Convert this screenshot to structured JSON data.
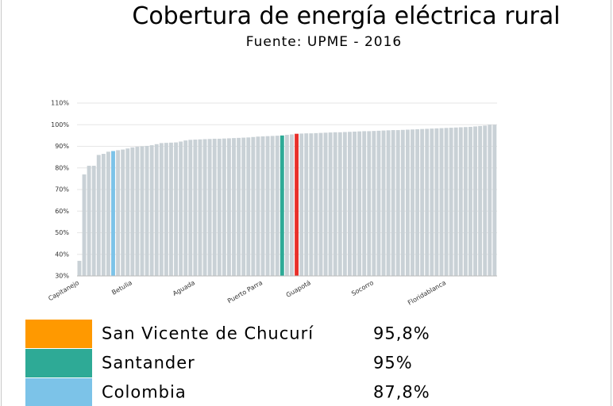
{
  "chart_data": {
    "type": "bar",
    "title": "Cobertura de energía eléctrica rural",
    "subtitle": "Fuente: UPME - 2016",
    "categories": [
      "Capitanejo",
      null,
      null,
      null,
      null,
      null,
      null,
      null,
      null,
      null,
      null,
      "Betulia",
      null,
      null,
      null,
      null,
      null,
      null,
      null,
      null,
      null,
      null,
      null,
      null,
      "Aguada",
      null,
      null,
      null,
      null,
      null,
      null,
      null,
      null,
      null,
      null,
      null,
      null,
      null,
      "Puerto Parra",
      null,
      null,
      null,
      null,
      null,
      null,
      null,
      null,
      null,
      "Guapotá",
      null,
      null,
      null,
      null,
      null,
      null,
      null,
      null,
      null,
      null,
      null,
      null,
      "Socorro",
      null,
      null,
      null,
      null,
      null,
      null,
      null,
      null,
      null,
      null,
      null,
      null,
      null,
      null,
      "Floridablanca",
      null,
      null,
      null,
      null,
      null,
      null,
      null,
      null,
      null,
      null
    ],
    "values": [
      37,
      77,
      81,
      81,
      86,
      86.5,
      87.5,
      87.8,
      88.2,
      88.5,
      89,
      89.5,
      89.8,
      90,
      90.2,
      90.5,
      91,
      91.5,
      91.6,
      91.7,
      91.8,
      92.2,
      92.7,
      93,
      93.1,
      93.2,
      93.3,
      93.4,
      93.5,
      93.5,
      93.6,
      93.7,
      93.8,
      93.9,
      94,
      94.1,
      94.3,
      94.5,
      94.6,
      94.7,
      94.8,
      94.9,
      95,
      95.3,
      95.5,
      95.8,
      95.9,
      96,
      96,
      96.1,
      96.2,
      96.3,
      96.4,
      96.5,
      96.5,
      96.6,
      96.7,
      96.8,
      96.9,
      97,
      97,
      97.1,
      97.2,
      97.3,
      97.4,
      97.5,
      97.5,
      97.6,
      97.7,
      97.8,
      97.9,
      98,
      98.1,
      98.2,
      98.3,
      98.4,
      98.5,
      98.6,
      98.7,
      98.8,
      98.9,
      99,
      99.2,
      99.4,
      99.6,
      100,
      100
    ],
    "colors": [
      "#c9d1d6",
      "#c9d1d6",
      "#c9d1d6",
      "#c9d1d6",
      "#c9d1d6",
      "#c9d1d6",
      "#c9d1d6",
      "#7cc3e8",
      "#c9d1d6",
      "#c9d1d6",
      "#c9d1d6",
      "#c9d1d6",
      "#c9d1d6",
      "#c9d1d6",
      "#c9d1d6",
      "#c9d1d6",
      "#c9d1d6",
      "#c9d1d6",
      "#c9d1d6",
      "#c9d1d6",
      "#c9d1d6",
      "#c9d1d6",
      "#c9d1d6",
      "#c9d1d6",
      "#c9d1d6",
      "#c9d1d6",
      "#c9d1d6",
      "#c9d1d6",
      "#c9d1d6",
      "#c9d1d6",
      "#c9d1d6",
      "#c9d1d6",
      "#c9d1d6",
      "#c9d1d6",
      "#c9d1d6",
      "#c9d1d6",
      "#c9d1d6",
      "#c9d1d6",
      "#c9d1d6",
      "#c9d1d6",
      "#c9d1d6",
      "#c9d1d6",
      "#2eaa96",
      "#c9d1d6",
      "#c9d1d6",
      "#e8302a",
      "#c9d1d6",
      "#c9d1d6",
      "#c9d1d6",
      "#c9d1d6",
      "#c9d1d6",
      "#c9d1d6",
      "#c9d1d6",
      "#c9d1d6",
      "#c9d1d6",
      "#c9d1d6",
      "#c9d1d6",
      "#c9d1d6",
      "#c9d1d6",
      "#c9d1d6",
      "#c9d1d6",
      "#c9d1d6",
      "#c9d1d6",
      "#c9d1d6",
      "#c9d1d6",
      "#c9d1d6",
      "#c9d1d6",
      "#c9d1d6",
      "#c9d1d6",
      "#c9d1d6",
      "#c9d1d6",
      "#c9d1d6",
      "#c9d1d6",
      "#c9d1d6",
      "#c9d1d6",
      "#c9d1d6",
      "#c9d1d6",
      "#c9d1d6",
      "#c9d1d6",
      "#c9d1d6",
      "#c9d1d6",
      "#c9d1d6",
      "#c9d1d6",
      "#c9d1d6",
      "#c9d1d6",
      "#c9d1d6",
      "#c9d1d6"
    ],
    "ylim": [
      30,
      110
    ],
    "yticks": [
      {
        "value": 30,
        "label": "30%"
      },
      {
        "value": 40,
        "label": "40%"
      },
      {
        "value": 50,
        "label": "50%"
      },
      {
        "value": 60,
        "label": "60%"
      },
      {
        "value": 70,
        "label": "70%"
      },
      {
        "value": 80,
        "label": "80%"
      },
      {
        "value": 90,
        "label": "90%"
      },
      {
        "value": 100,
        "label": "100%"
      },
      {
        "value": 110,
        "label": "110%"
      }
    ],
    "grid": true,
    "legend": {
      "names": [
        "San Vicente de Chucurí",
        "Santander",
        "Colombia"
      ],
      "colors": [
        "#ff9900",
        "#2eaa96",
        "#7cc3e8"
      ],
      "values": [
        95.8,
        95,
        87.8
      ],
      "value_labels": [
        "95,8%",
        "95%",
        "87,8%"
      ]
    }
  }
}
